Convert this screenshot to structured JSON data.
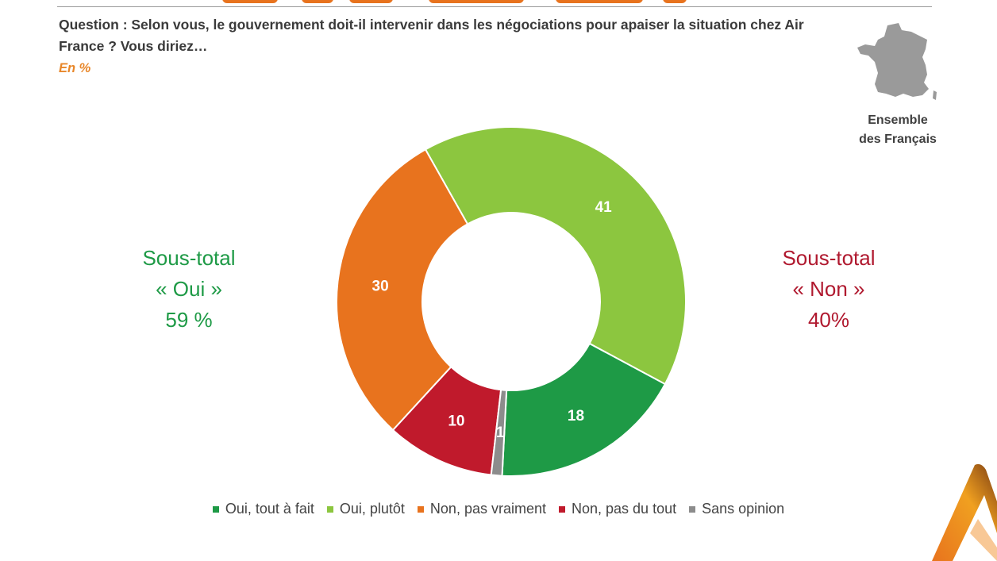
{
  "header": {
    "question": "Question : Selon vous, le gouvernement doit-il intervenir dans les négociations pour apaiser la situation chez Air France ? Vous diriez…",
    "unit": "En %"
  },
  "scope": {
    "line1": "Ensemble",
    "line2": "des Français"
  },
  "subtotals": {
    "yes": {
      "line1": "Sous-total",
      "line2": "« Oui »",
      "value": "59 %",
      "color": "#1e9a46"
    },
    "no": {
      "line1": "Sous-total",
      "line2": "« Non »",
      "value": "40%",
      "color": "#b0192f"
    }
  },
  "chart_data": {
    "type": "pie",
    "donut": true,
    "unit": "%",
    "start_category": "Oui, tout à fait",
    "direction": "counterclockwise",
    "categories": [
      "Oui, tout à fait",
      "Oui, plutôt",
      "Non, pas vraiment",
      "Non, pas du tout",
      "Sans opinion"
    ],
    "values": [
      18,
      41,
      30,
      10,
      1
    ],
    "colors": [
      "#1e9a46",
      "#8cc63f",
      "#e8731e",
      "#c01a2c",
      "#8c8c8c"
    ],
    "legend_position": "bottom"
  }
}
